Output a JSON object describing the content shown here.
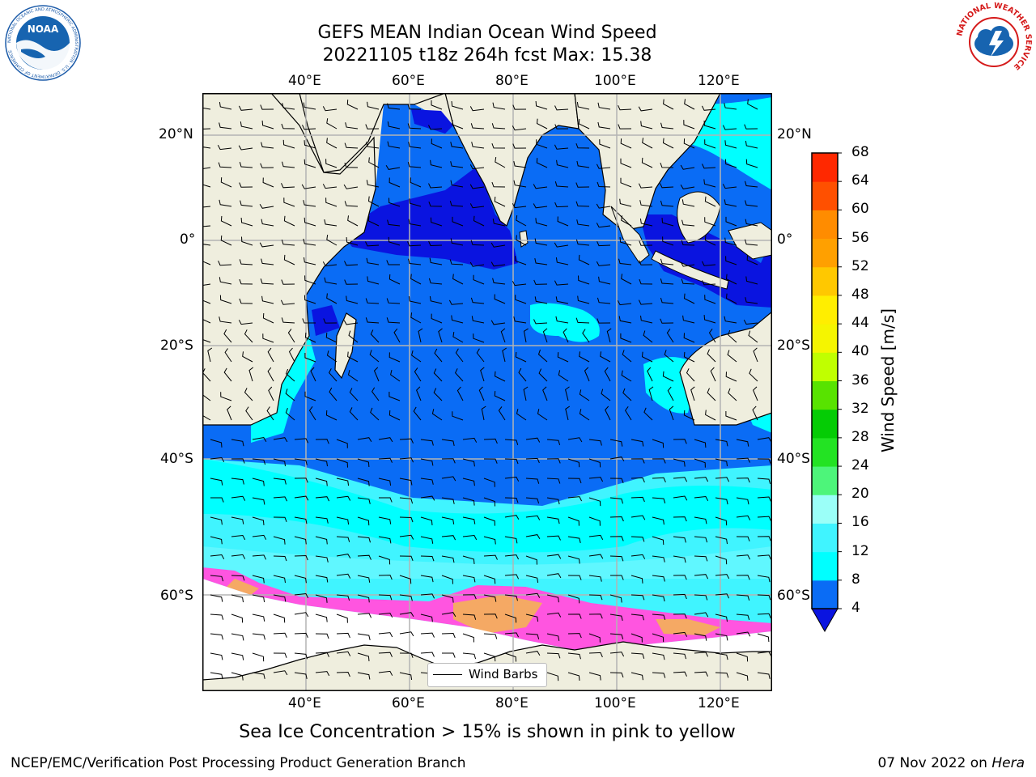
{
  "title": {
    "line1": "GEFS MEAN Indian Ocean Wind Speed",
    "line2": "20221105 t18z 264h fcst   Max: 15.38"
  },
  "map": {
    "lon_ticks": [
      "40°E",
      "60°E",
      "80°E",
      "100°E",
      "120°E"
    ],
    "lat_ticks": [
      "20°N",
      "0°",
      "20°S",
      "40°S",
      "60°S"
    ],
    "lon_range": [
      20,
      130
    ],
    "lat_range": [
      -78,
      28
    ],
    "colors": {
      "land": "#efeede",
      "ice_free_polar": "#ffffff",
      "wind_4_8": "#0a6cf5",
      "wind_lt4": "#0a14e0",
      "wind_8_12": "#00ffff",
      "wind_12_16": "#40f4ff",
      "ice_pink": "#ff55e0",
      "ice_orange": "#f5a964"
    }
  },
  "colorbar": {
    "label": "Wind Speed [m/s]",
    "ticks": [
      "68",
      "64",
      "60",
      "56",
      "52",
      "48",
      "44",
      "40",
      "36",
      "32",
      "28",
      "24",
      "20",
      "16",
      "12",
      "8",
      "4"
    ],
    "colors_bottom_to_top": [
      "#0a6cf5",
      "#00ffff",
      "#40f4ff",
      "#9bfff8",
      "#4df57a",
      "#23e323",
      "#05cc05",
      "#58e300",
      "#c0ff00",
      "#f5f500",
      "#ffee00",
      "#ffc800",
      "#ffa000",
      "#ff8c00",
      "#ff5000",
      "#ff2800"
    ],
    "extend_color": "#0a14e0"
  },
  "legend": {
    "label": "Wind Barbs"
  },
  "footer": {
    "note": "Sea Ice Concentration > 15% is shown in pink to yellow",
    "left": "NCEP/EMC/Verification Post Processing Product Generation Branch",
    "right_prefix": "07 Nov 2022 on ",
    "right_host": "Hera"
  },
  "logos": {
    "left": {
      "text": "NOAA",
      "ring_text": "NATIONAL OCEANIC AND ATMOSPHERIC ADMINISTRATION · U.S. DEPARTMENT OF COMMERCE"
    },
    "right": {
      "ring_text": "NATIONAL WEATHER SERVICE"
    }
  }
}
